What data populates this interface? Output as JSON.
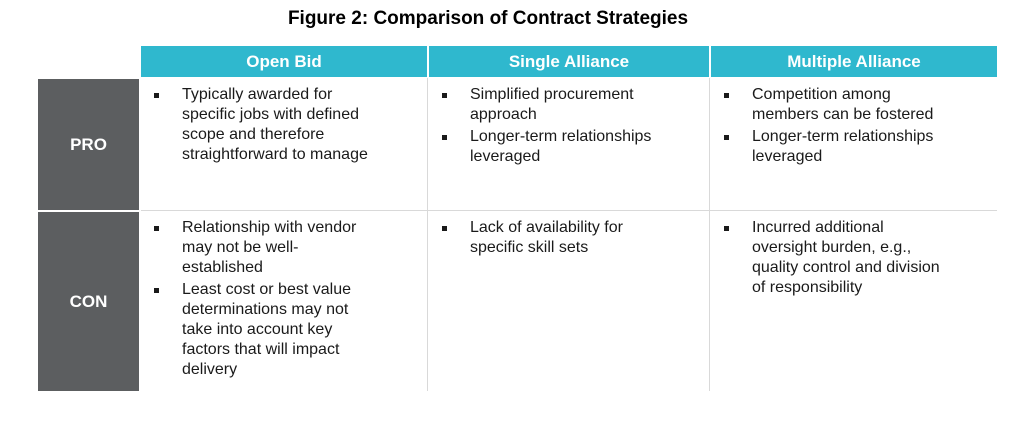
{
  "title": "Figure 2: Comparison of Contract Strategies",
  "colors": {
    "background": "#FFFFFF",
    "header_bg": "#2FB8CE",
    "header_text": "#FFFFFF",
    "label_bg": "#5C5E60",
    "label_text": "#FFFFFF",
    "body_text": "#1A1A1A",
    "bullet": "#1A1A1A",
    "divider": "#D9D9D9"
  },
  "table": {
    "columns": [
      "Open Bid",
      "Single Alliance",
      "Multiple Alliance"
    ],
    "rows": [
      {
        "label": "PRO",
        "cells": [
          [
            "Typically awarded for specific jobs with defined scope and therefore straightforward to manage"
          ],
          [
            "Simplified procurement approach",
            "Longer-term relationships leveraged"
          ],
          [
            "Competition among members can be fostered",
            "Longer-term relationships leveraged"
          ]
        ]
      },
      {
        "label": "CON",
        "cells": [
          [
            "Relationship with vendor may not be well-established",
            "Least cost or best value determinations may not take into account key factors that will impact delivery"
          ],
          [
            "Lack of availability for specific skill sets"
          ],
          [
            "Incurred additional oversight burden, e.g., quality control and division of responsibility"
          ]
        ]
      }
    ]
  }
}
